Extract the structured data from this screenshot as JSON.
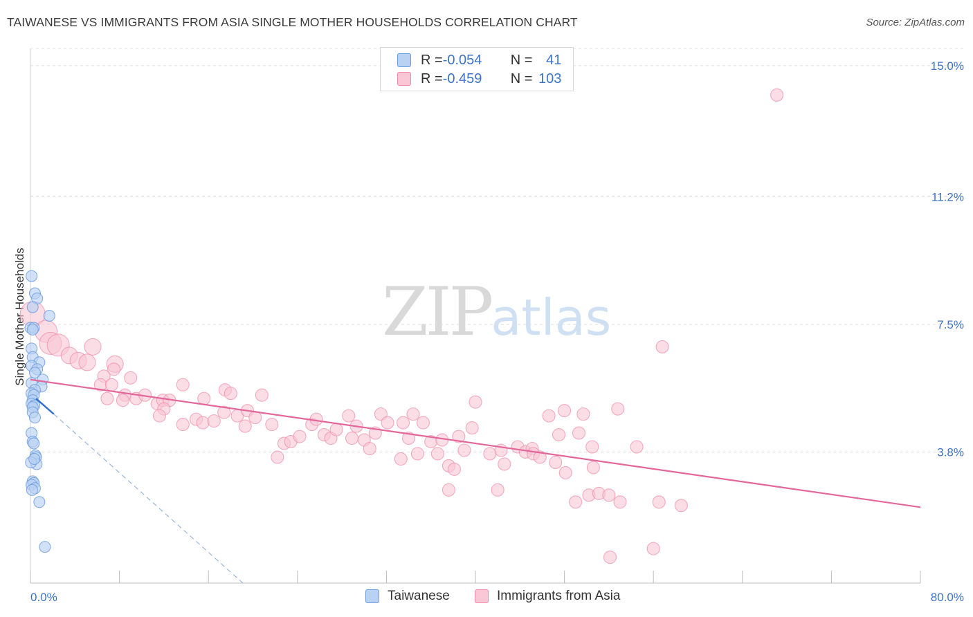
{
  "title": "TAIWANESE VS IMMIGRANTS FROM ASIA SINGLE MOTHER HOUSEHOLDS CORRELATION CHART",
  "source": "Source: ZipAtlas.com",
  "watermark": {
    "zip": "ZIP",
    "atlas": "atlas"
  },
  "legend": {
    "rows": [
      {
        "r_label": "R = ",
        "r_value": "-0.054",
        "n_label": "N = ",
        "n_value": "41",
        "color": "#6b9be0",
        "fill": "#b9d1f3"
      },
      {
        "r_label": "R = ",
        "r_value": "-0.459",
        "n_label": "N = ",
        "n_value": "103",
        "color": "#ef8aaa",
        "fill": "#f9c7d6"
      }
    ]
  },
  "bottom_legend": [
    {
      "label": "Taiwanese",
      "fill": "#b9d1f3",
      "stroke": "#6b9be0"
    },
    {
      "label": "Immigrants from Asia",
      "fill": "#f9c7d6",
      "stroke": "#ef8aaa"
    }
  ],
  "chart_data": {
    "type": "scatter",
    "title": "TAIWANESE VS IMMIGRANTS FROM ASIA SINGLE MOTHER HOUSEHOLDS CORRELATION CHART",
    "xlabel": "",
    "ylabel": "Single Mother Households",
    "xlim": [
      0,
      80
    ],
    "ylim": [
      0,
      15.5
    ],
    "x_ticks": [
      "0.0%",
      "80.0%"
    ],
    "y_ticks": [
      {
        "value": 3.8,
        "label": "3.8%"
      },
      {
        "value": 7.5,
        "label": "7.5%"
      },
      {
        "value": 11.2,
        "label": "11.2%"
      },
      {
        "value": 15.0,
        "label": "15.0%"
      }
    ],
    "grid": true,
    "legend_position": "top-center",
    "colors": {
      "taiwanese": "#6b9be0",
      "asia": "#ef8aaa",
      "asia_line": "#e3679a",
      "tw_line": "#2f6fcf"
    },
    "series": [
      {
        "name": "Taiwanese",
        "points": [
          [
            0.1,
            8.9
          ],
          [
            0.4,
            8.4
          ],
          [
            0.6,
            8.25
          ],
          [
            0.2,
            8.0
          ],
          [
            1.7,
            7.75
          ],
          [
            0.0,
            7.4
          ],
          [
            0.3,
            7.4
          ],
          [
            0.2,
            7.35
          ],
          [
            0.1,
            6.8
          ],
          [
            0.2,
            6.55
          ],
          [
            0.8,
            6.4
          ],
          [
            0.1,
            6.3
          ],
          [
            0.6,
            6.2
          ],
          [
            0.4,
            6.1
          ],
          [
            1.1,
            5.9
          ],
          [
            0.1,
            5.8
          ],
          [
            1.0,
            5.7
          ],
          [
            0.4,
            5.6
          ],
          [
            0.1,
            5.5
          ],
          [
            0.3,
            5.45
          ],
          [
            0.2,
            5.3
          ],
          [
            0.1,
            5.2
          ],
          [
            0.35,
            5.15
          ],
          [
            0.2,
            5.1
          ],
          [
            0.2,
            4.95
          ],
          [
            0.4,
            4.8
          ],
          [
            0.1,
            4.35
          ],
          [
            0.2,
            4.1
          ],
          [
            0.3,
            4.05
          ],
          [
            0.45,
            3.7
          ],
          [
            0.5,
            3.65
          ],
          [
            0.55,
            3.45
          ],
          [
            0.2,
            2.95
          ],
          [
            0.3,
            2.9
          ],
          [
            0.1,
            2.85
          ],
          [
            0.4,
            2.75
          ],
          [
            0.15,
            2.7
          ],
          [
            0.8,
            2.35
          ],
          [
            1.3,
            1.05
          ],
          [
            0.05,
            3.5
          ],
          [
            0.35,
            3.6
          ]
        ]
      },
      {
        "name": "Immigrants from Asia",
        "points": [
          [
            67.1,
            14.15
          ],
          [
            56.8,
            6.85
          ],
          [
            52.8,
            5.05
          ],
          [
            54.5,
            3.95
          ],
          [
            0.2,
            7.8
          ],
          [
            1.4,
            7.3
          ],
          [
            1.8,
            6.95
          ],
          [
            2.5,
            6.9
          ],
          [
            3.5,
            6.6
          ],
          [
            4.3,
            6.45
          ],
          [
            5.1,
            6.4
          ],
          [
            5.6,
            6.85
          ],
          [
            7.6,
            6.35
          ],
          [
            6.6,
            6.0
          ],
          [
            7.5,
            6.2
          ],
          [
            9.0,
            5.95
          ],
          [
            6.3,
            5.75
          ],
          [
            7.3,
            5.75
          ],
          [
            6.9,
            5.35
          ],
          [
            8.5,
            5.45
          ],
          [
            8.3,
            5.3
          ],
          [
            9.5,
            5.35
          ],
          [
            10.3,
            5.45
          ],
          [
            11.4,
            5.2
          ],
          [
            11.9,
            5.3
          ],
          [
            12.5,
            5.3
          ],
          [
            12.0,
            5.05
          ],
          [
            11.6,
            4.85
          ],
          [
            13.7,
            5.75
          ],
          [
            15.6,
            5.35
          ],
          [
            17.5,
            5.6
          ],
          [
            18.0,
            5.5
          ],
          [
            14.9,
            4.75
          ],
          [
            13.7,
            4.6
          ],
          [
            15.5,
            4.65
          ],
          [
            16.5,
            4.7
          ],
          [
            17.4,
            4.95
          ],
          [
            18.6,
            4.85
          ],
          [
            19.5,
            5.0
          ],
          [
            20.2,
            4.8
          ],
          [
            19.3,
            4.55
          ],
          [
            20.8,
            5.45
          ],
          [
            21.7,
            4.6
          ],
          [
            22.8,
            4.05
          ],
          [
            23.4,
            4.1
          ],
          [
            24.2,
            4.25
          ],
          [
            25.3,
            4.6
          ],
          [
            25.7,
            4.75
          ],
          [
            26.4,
            4.3
          ],
          [
            27.0,
            4.2
          ],
          [
            27.5,
            4.45
          ],
          [
            28.6,
            4.85
          ],
          [
            29.3,
            4.55
          ],
          [
            28.9,
            4.2
          ],
          [
            30.0,
            4.15
          ],
          [
            30.5,
            3.9
          ],
          [
            31.0,
            4.35
          ],
          [
            31.5,
            4.9
          ],
          [
            32.1,
            4.65
          ],
          [
            33.5,
            4.65
          ],
          [
            34.4,
            4.9
          ],
          [
            34.0,
            4.2
          ],
          [
            35.3,
            4.65
          ],
          [
            36.0,
            4.1
          ],
          [
            37.0,
            4.15
          ],
          [
            38.5,
            4.25
          ],
          [
            33.3,
            3.6
          ],
          [
            34.8,
            3.75
          ],
          [
            36.6,
            3.75
          ],
          [
            37.6,
            3.4
          ],
          [
            38.1,
            3.3
          ],
          [
            39.0,
            3.85
          ],
          [
            40.0,
            5.25
          ],
          [
            39.7,
            4.5
          ],
          [
            41.3,
            3.75
          ],
          [
            42.3,
            3.85
          ],
          [
            43.8,
            3.95
          ],
          [
            44.5,
            3.8
          ],
          [
            45.1,
            3.9
          ],
          [
            42.6,
            3.45
          ],
          [
            45.2,
            3.75
          ],
          [
            45.8,
            3.65
          ],
          [
            46.6,
            4.85
          ],
          [
            47.2,
            3.5
          ],
          [
            47.5,
            4.3
          ],
          [
            48.1,
            3.2
          ],
          [
            49.3,
            4.35
          ],
          [
            49.7,
            4.9
          ],
          [
            50.5,
            3.95
          ],
          [
            50.6,
            3.35
          ],
          [
            49.0,
            2.35
          ],
          [
            50.2,
            2.55
          ],
          [
            51.1,
            2.6
          ],
          [
            22.2,
            3.65
          ],
          [
            37.6,
            2.7
          ],
          [
            42.0,
            2.7
          ],
          [
            53.0,
            2.35
          ],
          [
            56.5,
            2.35
          ],
          [
            58.5,
            2.25
          ],
          [
            48.0,
            5.0
          ],
          [
            52.1,
            0.75
          ],
          [
            52.0,
            2.55
          ],
          [
            56.0,
            1.0
          ]
        ]
      }
    ],
    "trendlines": [
      {
        "series": "Immigrants from Asia",
        "x": [
          0,
          80
        ],
        "y": [
          5.9,
          2.2
        ]
      },
      {
        "series": "Taiwanese",
        "x": [
          0.5,
          2.1
        ],
        "y": [
          5.35,
          4.9
        ]
      },
      {
        "series": "Taiwanese (extrapolated)",
        "x": [
          2.1,
          19.1
        ],
        "y": [
          4.9,
          0.0
        ]
      }
    ]
  }
}
